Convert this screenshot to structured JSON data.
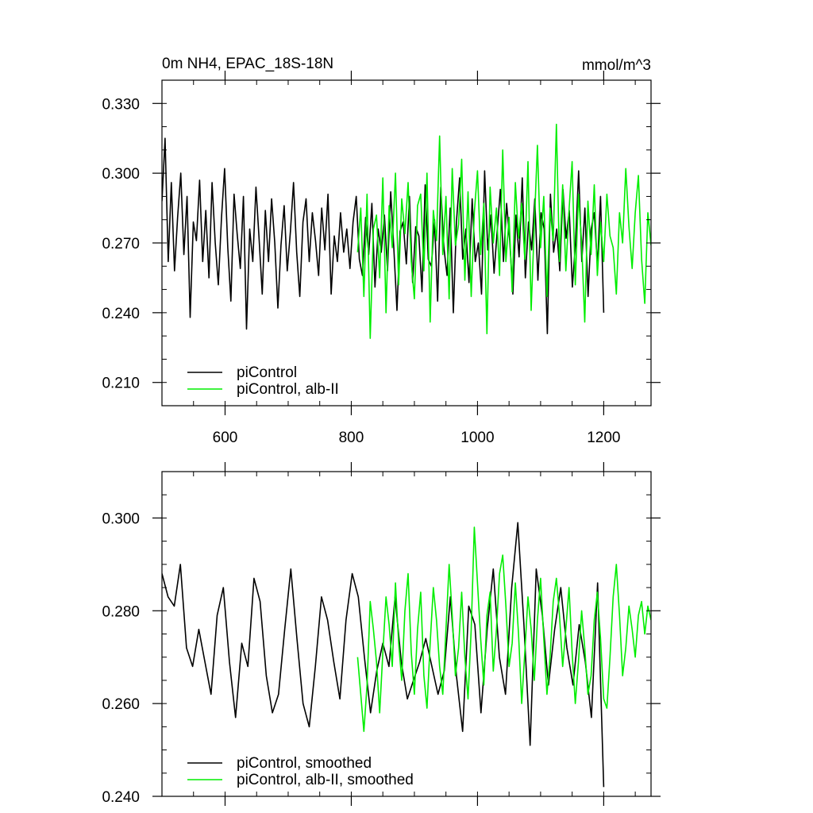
{
  "colors": {
    "control": "#000000",
    "alb": "#00ee00"
  },
  "chart_data": [
    {
      "type": "line",
      "title": "0m NH4, EPAC_18S-18N",
      "units": "mmol/m^3",
      "xlim": [
        500,
        1275
      ],
      "ylim": [
        0.2,
        0.34
      ],
      "x_ticks": [
        600,
        800,
        1000,
        1200
      ],
      "x_tick_labels": [
        "600",
        "800",
        "1000",
        "1200"
      ],
      "y_ticks": [
        0.21,
        0.24,
        0.27,
        0.3,
        0.33
      ],
      "y_tick_labels": [
        "0.210",
        "0.240",
        "0.270",
        "0.300",
        "0.330"
      ],
      "legend_position": "bottom-left",
      "series": [
        {
          "name": "piControl",
          "color": "#000000",
          "x_start": 500,
          "x_end": 1200,
          "step": 5,
          "values": [
            0.288,
            0.315,
            0.262,
            0.296,
            0.258,
            0.281,
            0.3,
            0.265,
            0.29,
            0.238,
            0.279,
            0.271,
            0.297,
            0.262,
            0.284,
            0.255,
            0.296,
            0.27,
            0.252,
            0.281,
            0.302,
            0.268,
            0.245,
            0.291,
            0.274,
            0.259,
            0.29,
            0.233,
            0.276,
            0.262,
            0.294,
            0.272,
            0.248,
            0.284,
            0.262,
            0.289,
            0.27,
            0.242,
            0.269,
            0.286,
            0.258,
            0.275,
            0.296,
            0.266,
            0.247,
            0.279,
            0.289,
            0.262,
            0.283,
            0.271,
            0.256,
            0.285,
            0.267,
            0.291,
            0.248,
            0.273,
            0.262,
            0.283,
            0.266,
            0.276,
            0.259,
            0.279,
            0.29,
            0.263,
            0.256,
            0.281,
            0.265,
            0.287,
            0.251,
            0.276,
            0.266,
            0.282,
            0.258,
            0.292,
            0.268,
            0.241,
            0.275,
            0.279,
            0.261,
            0.29,
            0.253,
            0.277,
            0.273,
            0.249,
            0.295,
            0.263,
            0.26,
            0.28,
            0.245,
            0.294,
            0.268,
            0.256,
            0.285,
            0.24,
            0.279,
            0.298,
            0.263,
            0.276,
            0.253,
            0.289,
            0.262,
            0.27,
            0.248,
            0.301,
            0.267,
            0.282,
            0.257,
            0.275,
            0.293,
            0.262,
            0.287,
            0.271,
            0.248,
            0.282,
            0.264,
            0.298,
            0.255,
            0.279,
            0.267,
            0.289,
            0.254,
            0.283,
            0.276,
            0.231,
            0.291,
            0.266,
            0.276,
            0.258,
            0.293,
            0.272,
            0.284,
            0.251,
            0.27,
            0.301,
            0.262,
            0.285,
            0.247,
            0.276,
            0.283,
            0.26,
            0.29,
            0.24
          ]
        },
        {
          "name": "piControl, alb-II",
          "color": "#00ee00",
          "x_start": 810,
          "x_end": 1275,
          "step": 5,
          "values": [
            0.266,
            0.285,
            0.247,
            0.291,
            0.229,
            0.276,
            0.282,
            0.255,
            0.298,
            0.24,
            0.286,
            0.268,
            0.3,
            0.252,
            0.289,
            0.274,
            0.296,
            0.262,
            0.246,
            0.286,
            0.291,
            0.258,
            0.3,
            0.236,
            0.284,
            0.271,
            0.316,
            0.265,
            0.29,
            0.246,
            0.302,
            0.269,
            0.278,
            0.306,
            0.254,
            0.292,
            0.247,
            0.283,
            0.301,
            0.265,
            0.287,
            0.231,
            0.294,
            0.27,
            0.285,
            0.256,
            0.31,
            0.262,
            0.281,
            0.249,
            0.296,
            0.272,
            0.287,
            0.263,
            0.305,
            0.241,
            0.278,
            0.312,
            0.268,
            0.29,
            0.247,
            0.285,
            0.271,
            0.321,
            0.262,
            0.295,
            0.258,
            0.284,
            0.305,
            0.252,
            0.291,
            0.27,
            0.236,
            0.288,
            0.265,
            0.295,
            0.256,
            0.279,
            0.262,
            0.291,
            0.273,
            0.268,
            0.248,
            0.283,
            0.27,
            0.302,
            0.277,
            0.259,
            0.283,
            0.299,
            0.263,
            0.244,
            0.283,
            0.269
          ]
        }
      ]
    },
    {
      "type": "line",
      "xlim": [
        500,
        1275
      ],
      "ylim": [
        0.24,
        0.31
      ],
      "x_ticks": [
        600,
        800,
        1000,
        1200
      ],
      "y_ticks": [
        0.24,
        0.26,
        0.28,
        0.3
      ],
      "y_tick_labels": [
        "0.240",
        "0.260",
        "0.280",
        "0.300"
      ],
      "legend_position": "bottom-left",
      "series": [
        {
          "name": "piControl, smoothed",
          "color": "#000000",
          "x_start": 500,
          "x_end": 1200,
          "step": 10,
          "values": [
            0.288,
            0.283,
            0.281,
            0.29,
            0.272,
            0.268,
            0.276,
            0.269,
            0.262,
            0.279,
            0.285,
            0.269,
            0.257,
            0.273,
            0.268,
            0.287,
            0.282,
            0.266,
            0.258,
            0.262,
            0.276,
            0.289,
            0.274,
            0.26,
            0.255,
            0.268,
            0.283,
            0.278,
            0.269,
            0.261,
            0.278,
            0.288,
            0.283,
            0.27,
            0.258,
            0.267,
            0.273,
            0.268,
            0.283,
            0.269,
            0.261,
            0.265,
            0.269,
            0.274,
            0.268,
            0.262,
            0.267,
            0.283,
            0.266,
            0.254,
            0.281,
            0.277,
            0.258,
            0.276,
            0.289,
            0.27,
            0.262,
            0.285,
            0.299,
            0.277,
            0.251,
            0.289,
            0.279,
            0.264,
            0.276,
            0.285,
            0.272,
            0.264,
            0.277,
            0.269,
            0.257,
            0.286,
            0.242
          ]
        },
        {
          "name": "piControl, alb-II, smoothed",
          "color": "#00ee00",
          "x_start": 810,
          "x_end": 1275,
          "step": 5,
          "values": [
            0.27,
            0.262,
            0.254,
            0.264,
            0.282,
            0.276,
            0.269,
            0.258,
            0.271,
            0.283,
            0.277,
            0.268,
            0.286,
            0.273,
            0.265,
            0.28,
            0.288,
            0.271,
            0.262,
            0.276,
            0.284,
            0.266,
            0.259,
            0.273,
            0.285,
            0.278,
            0.268,
            0.262,
            0.276,
            0.29,
            0.279,
            0.266,
            0.272,
            0.284,
            0.27,
            0.261,
            0.276,
            0.298,
            0.286,
            0.274,
            0.264,
            0.279,
            0.284,
            0.267,
            0.276,
            0.288,
            0.292,
            0.281,
            0.268,
            0.273,
            0.286,
            0.275,
            0.26,
            0.271,
            0.283,
            0.276,
            0.265,
            0.278,
            0.287,
            0.274,
            0.262,
            0.27,
            0.282,
            0.287,
            0.279,
            0.268,
            0.276,
            0.285,
            0.271,
            0.26,
            0.269,
            0.28,
            0.272,
            0.262,
            0.266,
            0.278,
            0.284,
            0.274,
            0.261,
            0.259,
            0.27,
            0.283,
            0.29,
            0.279,
            0.266,
            0.272,
            0.281,
            0.276,
            0.27,
            0.279,
            0.282,
            0.275,
            0.281,
            0.278
          ]
        }
      ]
    }
  ]
}
